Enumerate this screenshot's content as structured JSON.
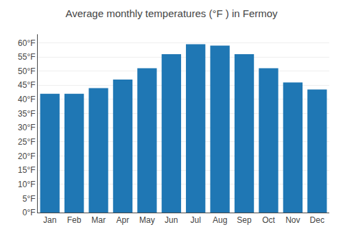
{
  "chart_data": {
    "type": "bar",
    "title": "Average monthly temperatures (°F ) in Fermoy",
    "categories": [
      "Jan",
      "Feb",
      "Mar",
      "Apr",
      "May",
      "Jun",
      "Jul",
      "Aug",
      "Sep",
      "Oct",
      "Nov",
      "Dec"
    ],
    "values": [
      42,
      42,
      44,
      47,
      51,
      56,
      59.5,
      59,
      56,
      51,
      46,
      43.5
    ],
    "ylim": [
      0,
      63
    ],
    "yticks": [
      {
        "value": 0,
        "label": "0°F"
      },
      {
        "value": 5,
        "label": "5°F"
      },
      {
        "value": 10,
        "label": "10°F"
      },
      {
        "value": 15,
        "label": "15°F"
      },
      {
        "value": 20,
        "label": "20°F"
      },
      {
        "value": 25,
        "label": "25°F"
      },
      {
        "value": 30,
        "label": "30°F"
      },
      {
        "value": 35,
        "label": "35°F"
      },
      {
        "value": 40,
        "label": "40°F"
      },
      {
        "value": 45,
        "label": "45°F"
      },
      {
        "value": 50,
        "label": "50°F"
      },
      {
        "value": 55,
        "label": "55°F"
      },
      {
        "value": 60,
        "label": "60°F"
      }
    ],
    "grid": true
  }
}
